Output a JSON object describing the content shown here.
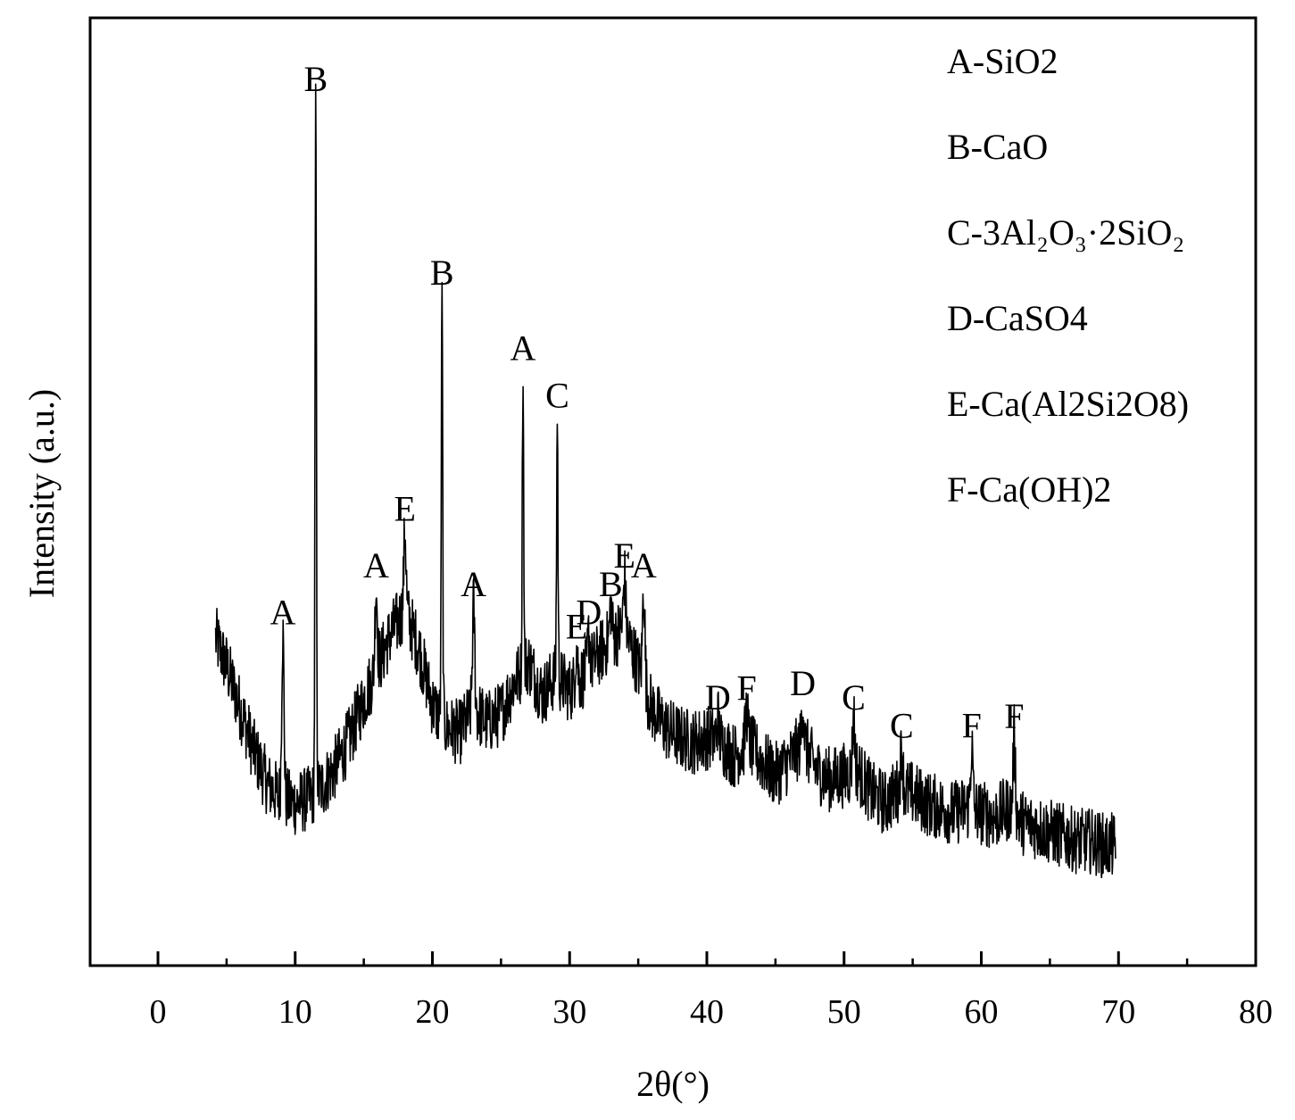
{
  "chart_data": {
    "type": "line",
    "xlabel": "2θ(°)",
    "ylabel": "Intensity (a.u.)",
    "xlim": [
      -5,
      80
    ],
    "ylim": [
      0,
      100
    ],
    "x_ticks": [
      0,
      10,
      20,
      30,
      40,
      50,
      60,
      70,
      80
    ],
    "x_tick_labels": [
      "0",
      "10",
      "20",
      "30",
      "40",
      "50",
      "60",
      "70",
      "80"
    ],
    "minor_ticks": [
      5,
      15,
      25,
      35,
      45,
      55,
      65,
      75
    ],
    "show_y_ticks": false,
    "grid": false,
    "line_color": "#000000",
    "legend": {
      "placement": "top-right",
      "entries": [
        "A-SiO2",
        "B-CaO",
        "C-3Al₂O₃·2SiO₂",
        "D-CaSO4",
        "E-Ca(Al2Si2O8)",
        "F-Ca(OH)2"
      ]
    },
    "baseline": [
      [
        4.2,
        34.5
      ],
      [
        5,
        31.5
      ],
      [
        6,
        27.0
      ],
      [
        7,
        22.5
      ],
      [
        8,
        19.0
      ],
      [
        9,
        17.5
      ],
      [
        10,
        17.0
      ],
      [
        11,
        17.5
      ],
      [
        12,
        18.8
      ],
      [
        13,
        21.0
      ],
      [
        14,
        24.0
      ],
      [
        15,
        28.0
      ],
      [
        16,
        31.5
      ],
      [
        17,
        35.0
      ],
      [
        18,
        37.5
      ],
      [
        19,
        33.5
      ],
      [
        20,
        27.5
      ],
      [
        21,
        25.0
      ],
      [
        22,
        24.5
      ],
      [
        23,
        27.0
      ],
      [
        24,
        25.5
      ],
      [
        25,
        26.5
      ],
      [
        26,
        30.0
      ],
      [
        27,
        32.0
      ],
      [
        28,
        28.5
      ],
      [
        29,
        30.5
      ],
      [
        30,
        29.0
      ],
      [
        31,
        30.5
      ],
      [
        32,
        32.5
      ],
      [
        33,
        34.5
      ],
      [
        34,
        35.5
      ],
      [
        35,
        31.5
      ],
      [
        36,
        27.0
      ],
      [
        37,
        25.0
      ],
      [
        38,
        24.0
      ],
      [
        39,
        23.5
      ],
      [
        40,
        24.0
      ],
      [
        41,
        23.5
      ],
      [
        42,
        22.0
      ],
      [
        43,
        23.5
      ],
      [
        44,
        21.5
      ],
      [
        45,
        20.0
      ],
      [
        46,
        21.5
      ],
      [
        47,
        23.5
      ],
      [
        48,
        20.5
      ],
      [
        49,
        19.5
      ],
      [
        50,
        20.0
      ],
      [
        51,
        20.5
      ],
      [
        52,
        18.0
      ],
      [
        53,
        17.0
      ],
      [
        54,
        18.5
      ],
      [
        55,
        18.0
      ],
      [
        56,
        17.0
      ],
      [
        57,
        16.5
      ],
      [
        58,
        16.0
      ],
      [
        59,
        16.5
      ],
      [
        60,
        16.0
      ],
      [
        61,
        15.5
      ],
      [
        62,
        16.5
      ],
      [
        63,
        15.0
      ],
      [
        64,
        14.5
      ],
      [
        65,
        14.0
      ],
      [
        66,
        13.5
      ],
      [
        67,
        13.0
      ],
      [
        68,
        13.0
      ],
      [
        69,
        12.5
      ],
      [
        69.8,
        12.5
      ]
    ],
    "peaks": [
      {
        "x": 9.1,
        "y": 35.0,
        "label": "A"
      },
      {
        "x": 11.5,
        "y": 91.5,
        "label": "B"
      },
      {
        "x": 15.9,
        "y": 40.0,
        "label": "A"
      },
      {
        "x": 18.0,
        "y": 46.0,
        "label": "E"
      },
      {
        "x": 20.7,
        "y": 71.0,
        "label": "B"
      },
      {
        "x": 23.0,
        "y": 38.0,
        "label": "A"
      },
      {
        "x": 26.6,
        "y": 63.0,
        "label": "A"
      },
      {
        "x": 29.1,
        "y": 58.0,
        "label": "C"
      },
      {
        "x": 30.5,
        "y": 33.5,
        "label": "E"
      },
      {
        "x": 31.4,
        "y": 35.0,
        "label": "D"
      },
      {
        "x": 33.0,
        "y": 38.0,
        "label": "B"
      },
      {
        "x": 34.0,
        "y": 41.0,
        "label": "E"
      },
      {
        "x": 35.4,
        "y": 40.0,
        "label": "A"
      },
      {
        "x": 40.8,
        "y": 26.0,
        "label": "D"
      },
      {
        "x": 42.9,
        "y": 27.0,
        "label": "F"
      },
      {
        "x": 47.0,
        "y": 27.5,
        "label": "D"
      },
      {
        "x": 50.7,
        "y": 26.0,
        "label": "C"
      },
      {
        "x": 54.2,
        "y": 23.0,
        "label": "C"
      },
      {
        "x": 59.3,
        "y": 23.0,
        "label": "F"
      },
      {
        "x": 62.4,
        "y": 24.0,
        "label": "F"
      }
    ]
  }
}
